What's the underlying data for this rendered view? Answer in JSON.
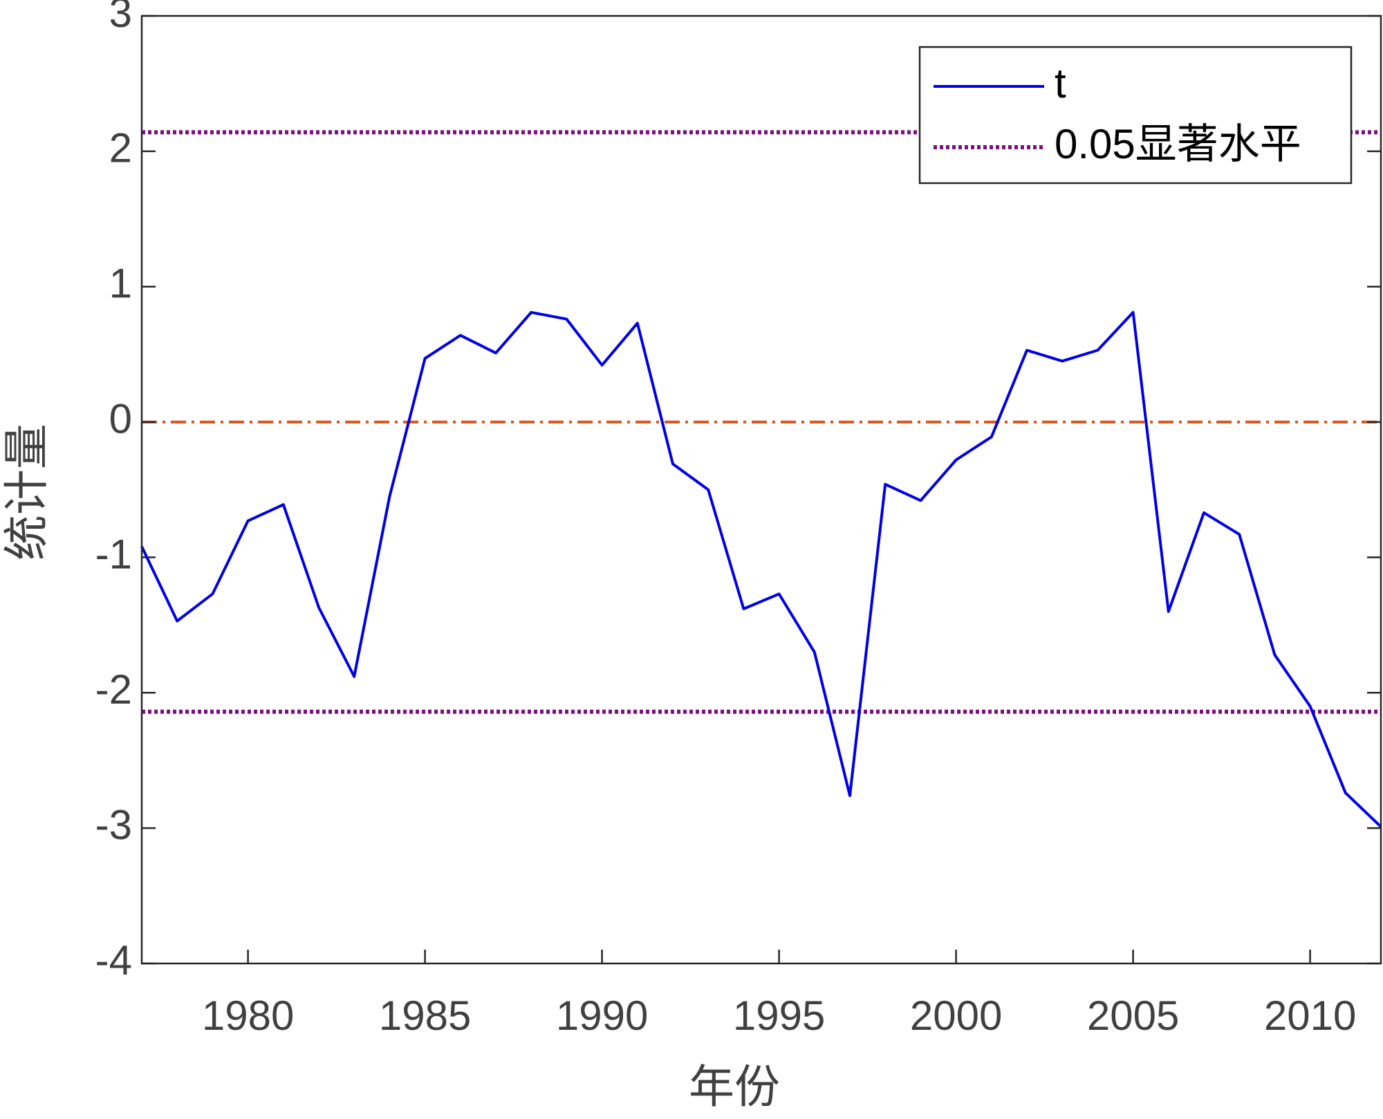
{
  "chart_data": {
    "type": "line",
    "x_label": "年份",
    "y_label": "统计量",
    "x": [
      1977,
      1978,
      1979,
      1980,
      1981,
      1982,
      1983,
      1984,
      1985,
      1986,
      1987,
      1988,
      1989,
      1990,
      1991,
      1992,
      1993,
      1994,
      1995,
      1996,
      1997,
      1998,
      1999,
      2000,
      2001,
      2002,
      2003,
      2004,
      2005,
      2006,
      2007,
      2008,
      2009,
      2010,
      2011,
      2012
    ],
    "series": [
      {
        "name": "t",
        "color": "#0000e6",
        "values": [
          -0.92,
          -1.47,
          -1.27,
          -0.73,
          -0.61,
          -1.37,
          -1.88,
          -0.55,
          0.47,
          0.64,
          0.51,
          0.81,
          0.76,
          0.42,
          0.73,
          -0.31,
          -0.5,
          -1.38,
          -1.27,
          -1.7,
          -2.76,
          -0.46,
          -0.58,
          -0.28,
          -0.11,
          0.53,
          0.45,
          0.53,
          0.81,
          -1.4,
          -0.67,
          -0.83,
          -1.72,
          -2.1,
          -2.74,
          -2.99
        ]
      }
    ],
    "threshold": {
      "name": "0.05显著水平",
      "color": "#7e0f7e",
      "values": [
        2.14,
        -2.14
      ]
    },
    "reference_line": {
      "value": 0,
      "color": "#d95319"
    },
    "xlim": [
      1977,
      2012
    ],
    "ylim": [
      -4,
      3
    ],
    "xticks": [
      1980,
      1985,
      1990,
      1995,
      2000,
      2005,
      2010
    ],
    "yticks": [
      -4,
      -3,
      -2,
      -1,
      0,
      1,
      2,
      3
    ],
    "legend": "upper right"
  }
}
